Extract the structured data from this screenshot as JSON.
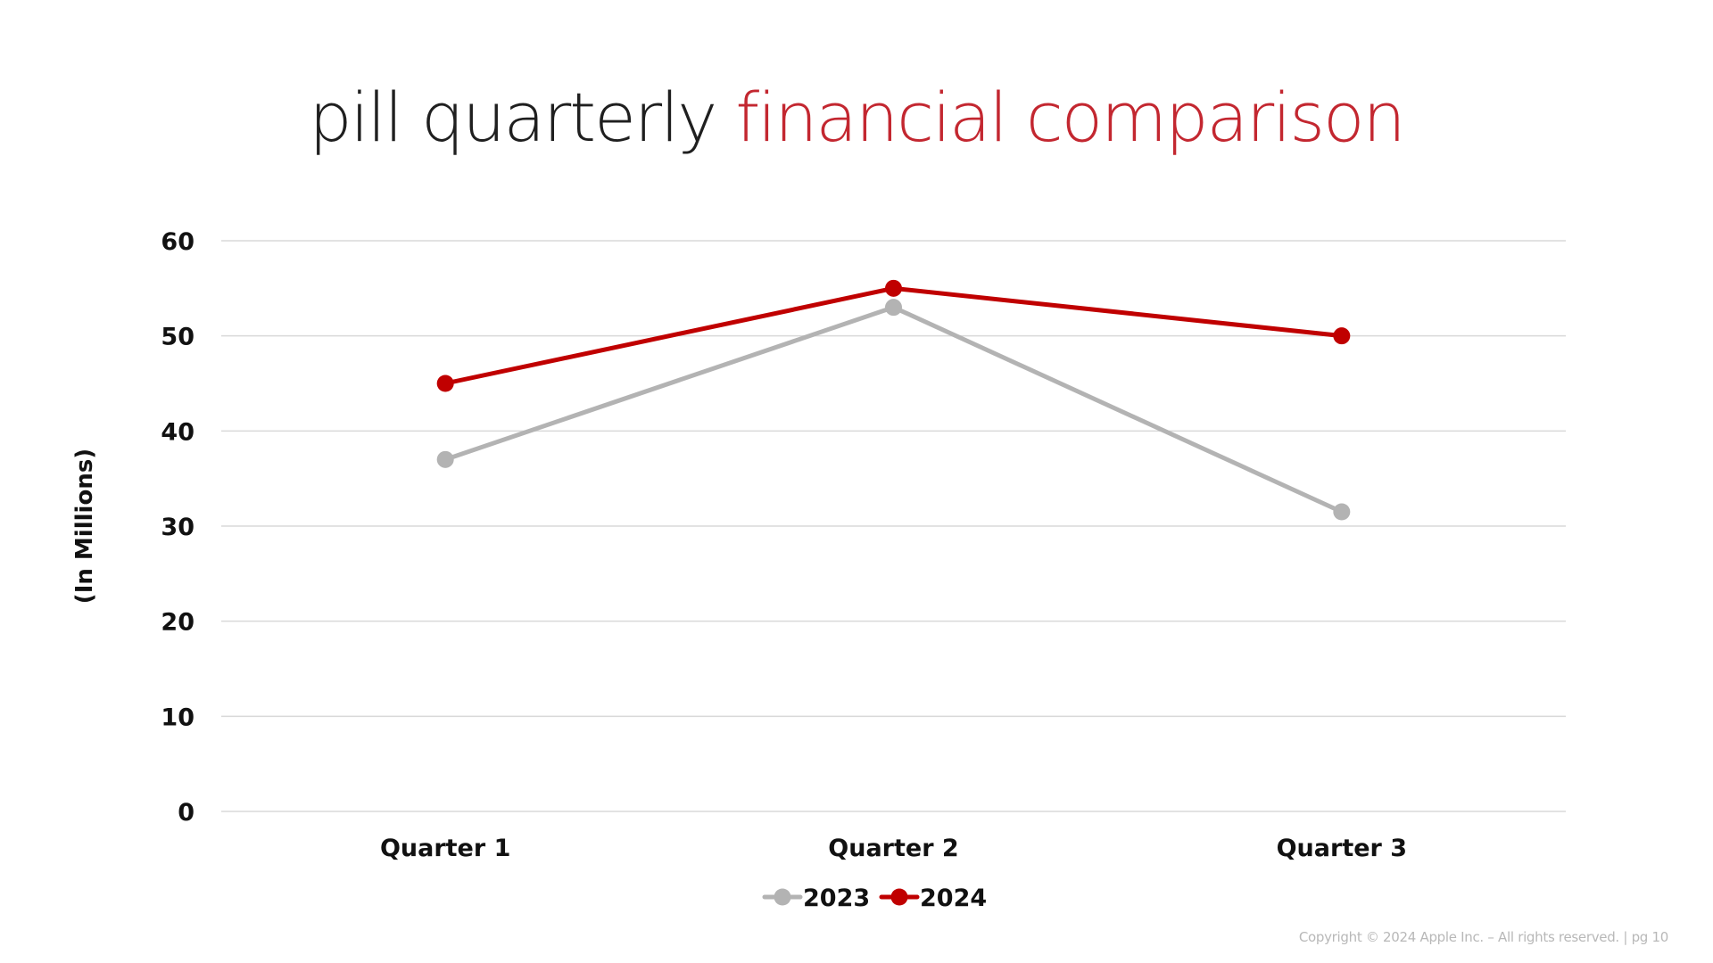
{
  "title": {
    "part1": "pill quarterly",
    "part2": "financial comparison"
  },
  "footer": "Copyright © 2024 Apple Inc. – All rights reserved. | pg 10",
  "chart_data": {
    "type": "line",
    "categories": [
      "Quarter 1",
      "Quarter 2",
      "Quarter 3"
    ],
    "series": [
      {
        "name": "2023",
        "values": [
          37,
          53,
          31.5
        ],
        "color": "#b3b3b3"
      },
      {
        "name": "2024",
        "values": [
          45,
          55,
          50
        ],
        "color": "#c00000"
      }
    ],
    "ylabel": "(In Millions)",
    "ylim": [
      0,
      60
    ],
    "yticks": [
      0,
      10,
      20,
      30,
      40,
      50,
      60
    ],
    "grid": true,
    "legend": "bottom-center"
  },
  "colors": {
    "title_dark": "#1f1f1f",
    "title_accent": "#c32730",
    "gridline": "#d9d9d9"
  }
}
